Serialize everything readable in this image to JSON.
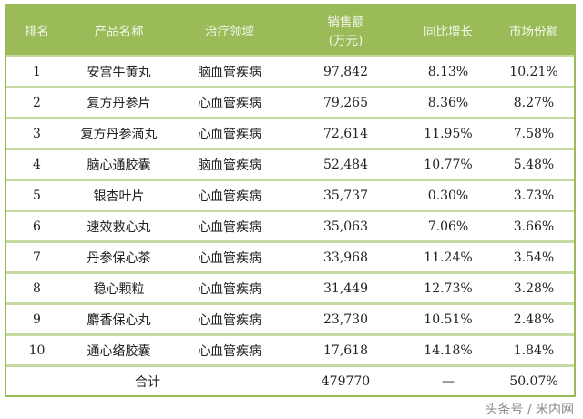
{
  "table": {
    "headers": [
      "排名",
      "产品名称",
      "治疗领域",
      "销售额\n(万元)",
      "同比增长",
      "市场份额"
    ],
    "header_sales_line1": "销售额",
    "header_sales_line2": "(万元)",
    "rows": [
      [
        "1",
        "安宫牛黄丸",
        "脑血管疾病",
        "97,842",
        "8.13%",
        "10.21%"
      ],
      [
        "2",
        "复方丹参片",
        "心血管疾病",
        "79,265",
        "8.36%",
        "8.27%"
      ],
      [
        "3",
        "复方丹参滴丸",
        "心血管疾病",
        "72,614",
        "11.95%",
        "7.58%"
      ],
      [
        "4",
        "脑心通胶囊",
        "脑血管疾病",
        "52,484",
        "10.77%",
        "5.48%"
      ],
      [
        "5",
        "银杏叶片",
        "心血管疾病",
        "35,737",
        "0.30%",
        "3.73%"
      ],
      [
        "6",
        "速效救心丸",
        "心血管疾病",
        "35,063",
        "7.06%",
        "3.66%"
      ],
      [
        "7",
        "丹参保心茶",
        "心血管疾病",
        "33,968",
        "11.24%",
        "3.54%"
      ],
      [
        "8",
        "稳心颗粒",
        "心血管疾病",
        "31,449",
        "12.73%",
        "3.28%"
      ],
      [
        "9",
        "麝香保心丸",
        "心血管疾病",
        "23,730",
        "10.51%",
        "2.48%"
      ],
      [
        "10",
        "通心络胶囊",
        "心血管疾病",
        "17,618",
        "14.18%",
        "1.84%"
      ]
    ],
    "total": {
      "label": "合计",
      "sales": "479770",
      "growth": "—",
      "share": "50.07%"
    }
  },
  "watermark": "头条号 / 米内网",
  "colors": {
    "header_bg": "#9bbb59",
    "row_border": "#c6d9a0"
  }
}
